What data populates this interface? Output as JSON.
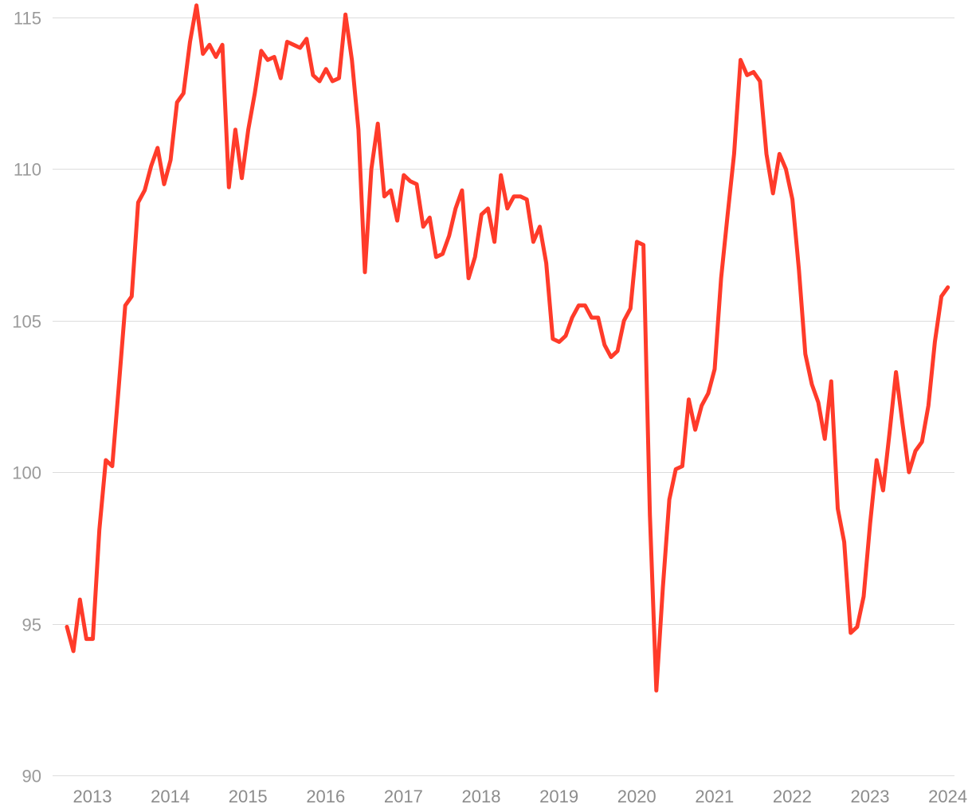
{
  "chart_data": {
    "type": "line",
    "title": "",
    "xlabel": "",
    "ylabel": "",
    "ylim": [
      90,
      115
    ],
    "y_ticks": [
      90,
      95,
      100,
      105,
      110,
      115
    ],
    "x_tick_labels": [
      "2013",
      "2014",
      "2015",
      "2016",
      "2017",
      "2018",
      "2019",
      "2020",
      "2021",
      "2022",
      "2023",
      "2024"
    ],
    "grid": "horizontal",
    "legend": "none",
    "colors": {
      "series": "#ff3b2a",
      "grid": "#dcdcdc",
      "tick_text": "#9a9a9a"
    },
    "series": [
      {
        "x_start": "2012-08",
        "frequency": "monthly",
        "values": [
          94.9,
          94.1,
          95.8,
          94.5,
          94.5,
          98.1,
          100.4,
          100.2,
          102.8,
          105.5,
          105.8,
          108.9,
          109.3,
          110.1,
          110.7,
          109.5,
          110.3,
          112.2,
          112.5,
          114.2,
          115.4,
          113.8,
          114.1,
          113.7,
          114.1,
          109.4,
          111.3,
          109.7,
          111.3,
          112.5,
          113.9,
          113.6,
          113.7,
          113.0,
          114.2,
          114.1,
          114.0,
          114.3,
          113.1,
          112.9,
          113.3,
          112.9,
          113.0,
          115.1,
          113.6,
          111.3,
          106.6,
          110.0,
          111.5,
          109.1,
          109.3,
          108.3,
          109.8,
          109.6,
          109.5,
          108.1,
          108.4,
          107.1,
          107.2,
          107.8,
          108.7,
          109.3,
          106.4,
          107.1,
          108.5,
          108.7,
          107.6,
          109.8,
          108.7,
          109.1,
          109.1,
          109.0,
          107.6,
          108.1,
          106.9,
          104.4,
          104.3,
          104.5,
          105.1,
          105.5,
          105.5,
          105.1,
          105.1,
          104.2,
          103.8,
          104.0,
          105.0,
          105.4,
          107.6,
          107.5,
          98.6,
          92.8,
          96.2,
          99.1,
          100.1,
          100.2,
          102.4,
          101.4,
          102.2,
          102.6,
          103.4,
          106.4,
          108.5,
          110.5,
          113.6,
          113.1,
          113.2,
          112.9,
          110.5,
          109.2,
          110.5,
          110.0,
          109.0,
          106.7,
          103.9,
          102.9,
          102.3,
          101.1,
          103.0,
          98.8,
          97.7,
          94.7,
          94.9,
          95.9,
          98.3,
          100.4,
          99.4,
          101.3,
          103.3,
          101.6,
          100.0,
          100.7,
          101.0,
          102.2,
          104.3,
          105.8,
          106.1
        ]
      }
    ]
  }
}
